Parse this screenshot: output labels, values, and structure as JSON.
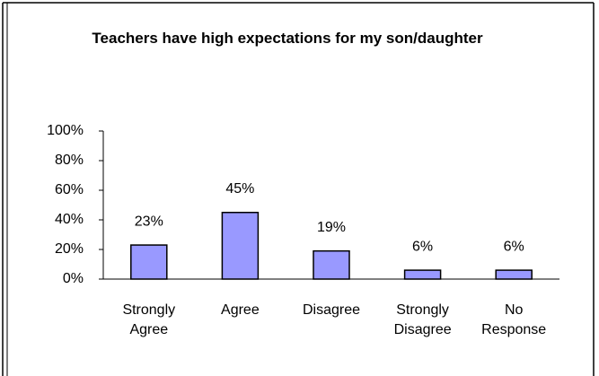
{
  "chart_data": {
    "type": "bar",
    "title": "Teachers have high expectations for my son/daughter",
    "categories": [
      "Strongly Agree",
      "Agree",
      "Disagree",
      "Strongly Disagree",
      "No Response"
    ],
    "values": [
      23,
      45,
      19,
      6,
      6
    ],
    "value_labels": [
      "23%",
      "45%",
      "19%",
      "6%",
      "6%"
    ],
    "color": "#9999ff",
    "ylim": [
      0,
      100
    ],
    "yticks": [
      {
        "value": 0,
        "label": "0%"
      },
      {
        "value": 20,
        "label": "20%"
      },
      {
        "value": 40,
        "label": "40%"
      },
      {
        "value": 60,
        "label": "60%"
      },
      {
        "value": 80,
        "label": "80%"
      },
      {
        "value": 100,
        "label": "100%"
      }
    ]
  }
}
